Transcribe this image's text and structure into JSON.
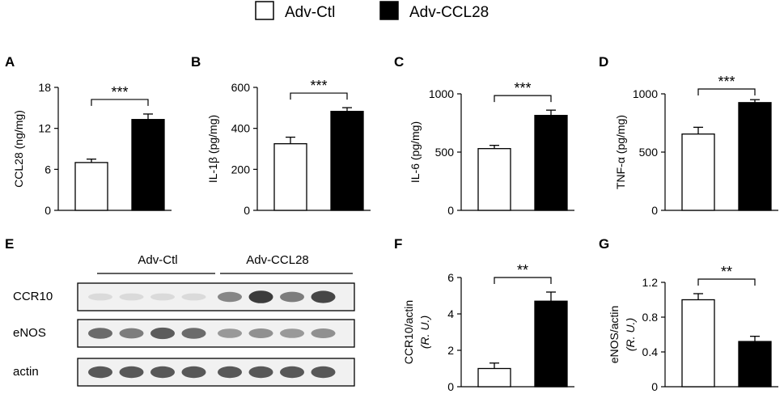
{
  "legend": {
    "items": [
      {
        "label": "Adv-Ctl",
        "color": "#ffffff"
      },
      {
        "label": "Adv-CCL28",
        "color": "#000000"
      }
    ]
  },
  "blot": {
    "panel_label": "E",
    "group_labels": [
      "Adv-Ctl",
      "Adv-CCL28"
    ],
    "lanes_per_group": 4,
    "rows": [
      {
        "label": "CCR10",
        "intensities": [
          0.1,
          0.1,
          0.1,
          0.1,
          0.55,
          0.95,
          0.6,
          0.9
        ]
      },
      {
        "label": "eNOS",
        "intensities": [
          0.7,
          0.6,
          0.78,
          0.7,
          0.45,
          0.5,
          0.45,
          0.5
        ]
      },
      {
        "label": "actin",
        "intensities": [
          0.8,
          0.8,
          0.8,
          0.8,
          0.8,
          0.8,
          0.8,
          0.8
        ]
      }
    ]
  },
  "chart_data": [
    {
      "panel_label": "A",
      "type": "bar",
      "categories": [
        "Adv-Ctl",
        "Adv-CCL28"
      ],
      "values": [
        7.0,
        13.3
      ],
      "errors": [
        0.5,
        0.8
      ],
      "ylabel": "CCL28 (ng/mg)",
      "ylabel_units": "",
      "ylim": [
        0,
        18
      ],
      "yticks": [
        "0",
        "6",
        "12",
        "18"
      ],
      "significance": "***"
    },
    {
      "panel_label": "B",
      "type": "bar",
      "categories": [
        "Adv-Ctl",
        "Adv-CCL28"
      ],
      "values": [
        325,
        483
      ],
      "errors": [
        32,
        18
      ],
      "ylabel": "IL-1β (pg/mg)",
      "ylabel_units": "",
      "ylim": [
        0,
        600
      ],
      "yticks": [
        "0",
        "200",
        "400",
        "600"
      ],
      "significance": "***"
    },
    {
      "panel_label": "C",
      "type": "bar",
      "categories": [
        "Adv-Ctl",
        "Adv-CCL28"
      ],
      "values": [
        530,
        815
      ],
      "errors": [
        28,
        45
      ],
      "ylabel": "IL-6 (pg/mg)",
      "ylabel_units": "",
      "ylim": [
        0,
        1000
      ],
      "yticks": [
        "0",
        "500",
        "1000"
      ],
      "significance": "***"
    },
    {
      "panel_label": "D",
      "type": "bar",
      "categories": [
        "Adv-Ctl",
        "Adv-CCL28"
      ],
      "values": [
        655,
        925
      ],
      "errors": [
        58,
        25
      ],
      "ylabel": "TNF-α (pg/mg)",
      "ylabel_units": "",
      "ylim": [
        0,
        1000
      ],
      "yticks": [
        "0",
        "500",
        "1000"
      ],
      "significance": "***"
    },
    {
      "panel_label": "F",
      "type": "bar",
      "categories": [
        "Adv-Ctl",
        "Adv-CCL28"
      ],
      "values": [
        1.0,
        4.7
      ],
      "errors": [
        0.3,
        0.5
      ],
      "ylabel": "CCR10/actin",
      "ylabel_units": "(R. U.)",
      "ylim": [
        0,
        6
      ],
      "yticks": [
        "0",
        "2",
        "4",
        "6"
      ],
      "significance": "**"
    },
    {
      "panel_label": "G",
      "type": "bar",
      "categories": [
        "Adv-Ctl",
        "Adv-CCL28"
      ],
      "values": [
        1.0,
        0.52
      ],
      "errors": [
        0.07,
        0.06
      ],
      "ylabel": "eNOS/actin",
      "ylabel_units": "(R. U.)",
      "ylim": [
        0,
        1.2
      ],
      "yticks": [
        "0",
        "0.4",
        "0.8",
        "1.2"
      ],
      "significance": "**"
    }
  ]
}
